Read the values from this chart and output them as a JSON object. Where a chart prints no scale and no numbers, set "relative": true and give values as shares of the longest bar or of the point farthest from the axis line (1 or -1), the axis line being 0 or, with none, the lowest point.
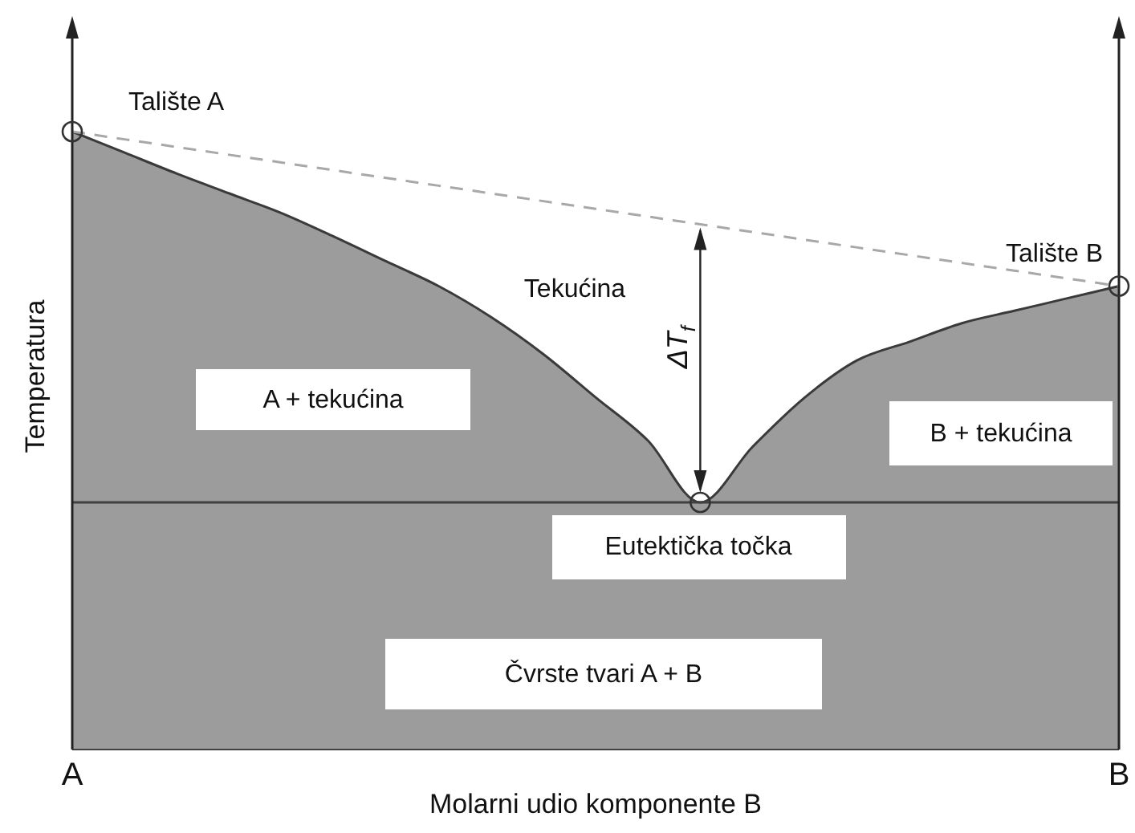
{
  "chart_data": {
    "type": "area",
    "relative": true,
    "xlabel": "Molarni udio komponente B",
    "ylabel": "Temperatura",
    "categories": [
      "A",
      null,
      null,
      null,
      null,
      null,
      null,
      null,
      null,
      null,
      null,
      null,
      null,
      null,
      null,
      null,
      null,
      null,
      null,
      null,
      "B"
    ],
    "series": [
      {
        "color": "#9c9c9c",
        "values": [
          1,
          0.966,
          0.932,
          0.9,
          0.868,
          0.83,
          0.79,
          0.75,
          0.7,
          0.64,
          0.57,
          0.5,
          0.4,
          0.49,
          0.57,
          0.63,
          0.66,
          0.69,
          0.71,
          0.73,
          0.75
        ]
      },
      {
        "type": "line",
        "color": "#a8a8a8",
        "line_style": "dashed",
        "values": [
          1,
          0.9875,
          0.975,
          0.9625,
          0.95,
          0.9375,
          0.925,
          0.9125,
          0.9,
          0.8875,
          0.875,
          0.8625,
          0.85,
          0.8375,
          0.825,
          0.8125,
          0.8,
          0.7875,
          0.775,
          0.7625,
          0.75
        ]
      }
    ],
    "ref_lines": [
      {
        "axis": "y",
        "value": 0.4,
        "label": "Eutektička točka",
        "color": "#404040"
      }
    ],
    "annotations": [
      {
        "text": "Talište A",
        "x": "A",
        "y": 1
      },
      {
        "text": "Talište B",
        "x": "B",
        "y": 0.75
      },
      "Tekućina",
      "A + tekućina",
      "B + tekućina",
      "Čvrste tvari A + B",
      "ΔT$_{f}$"
    ]
  }
}
